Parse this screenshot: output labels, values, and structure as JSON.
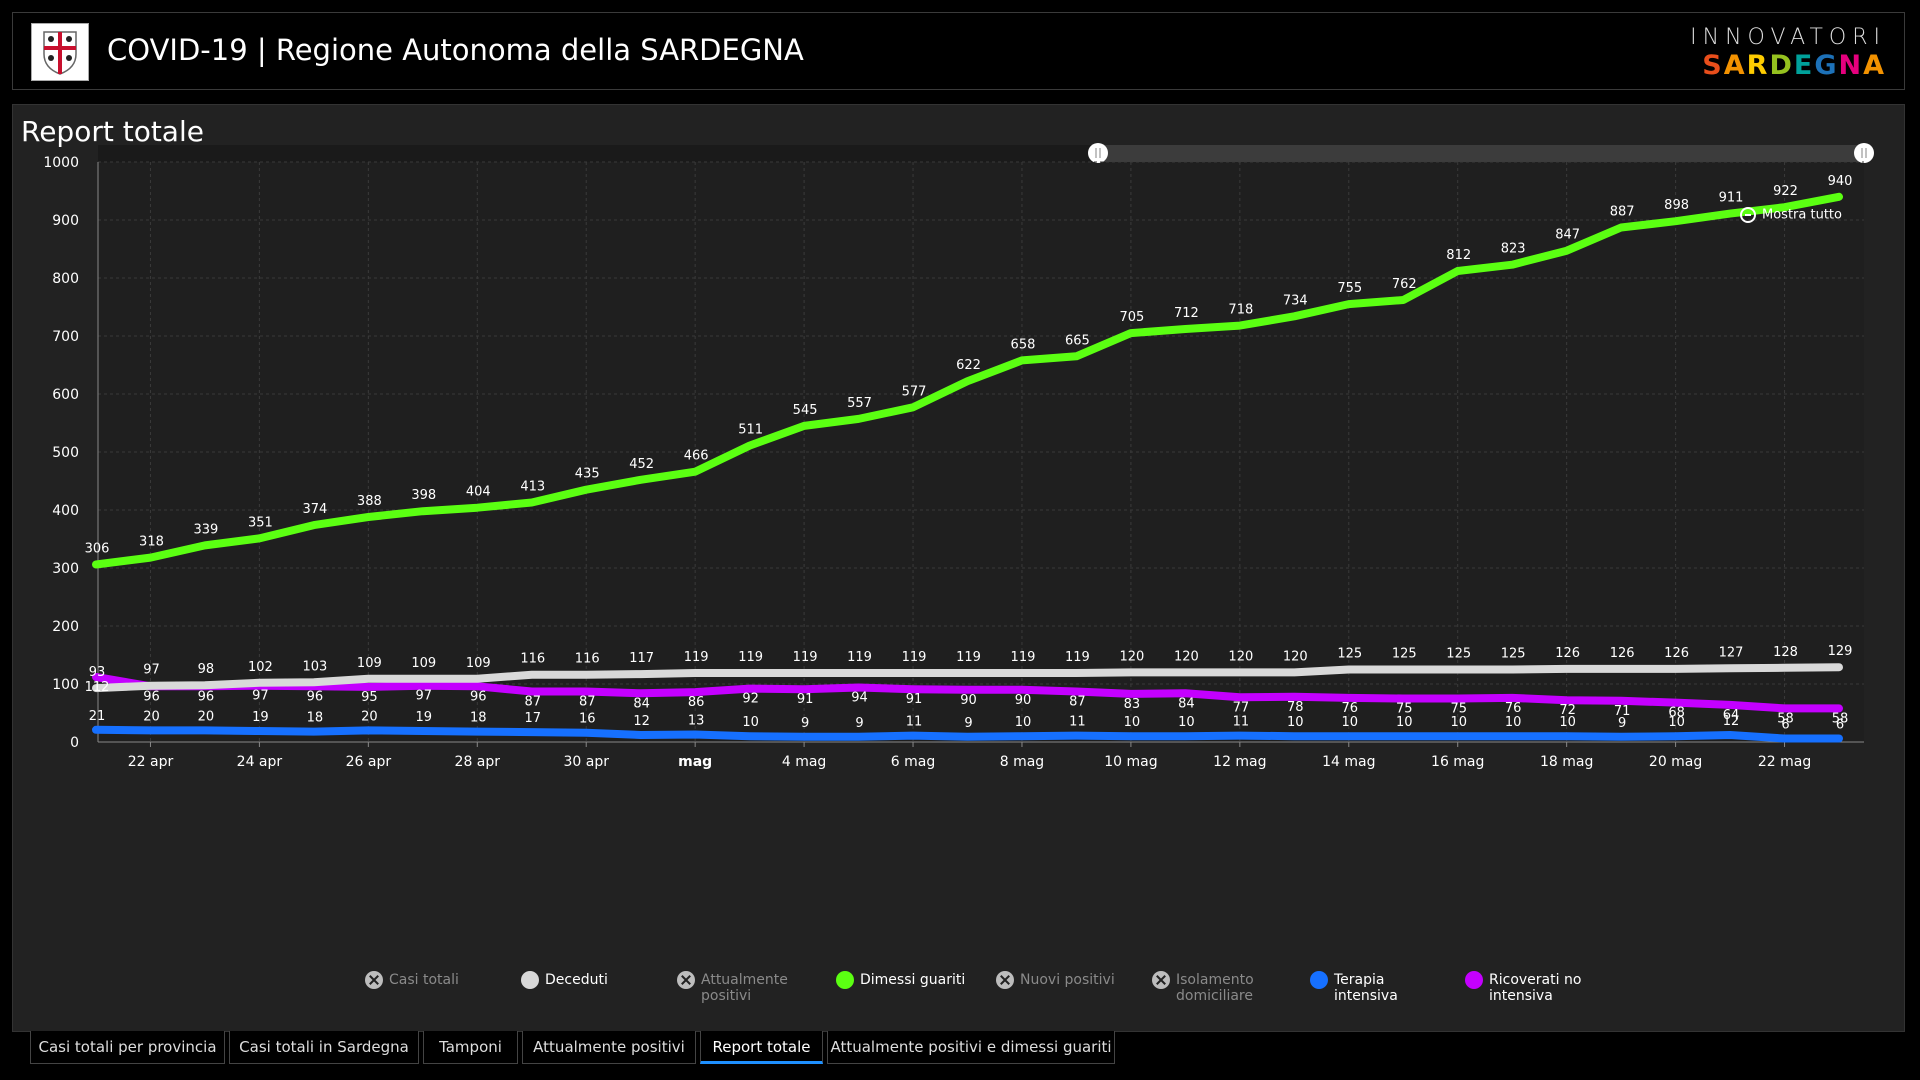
{
  "header": {
    "title": "COVID-19 | Regione Autonoma della SARDEGNA",
    "brand_top": "INNOVATORI",
    "brand_bottom": "SARDEGNA"
  },
  "panel": {
    "title": "Report totale",
    "zoom_label": "Mostra tutto"
  },
  "legend": [
    {
      "label": "Casi totali",
      "color": "#8a8a8a",
      "enabled": false
    },
    {
      "label": "Deceduti",
      "color": "#d9d9d9",
      "enabled": true
    },
    {
      "label": "Attualmente positivi",
      "color": "#8a8a8a",
      "enabled": false
    },
    {
      "label": "Dimessi guariti",
      "color": "#5bff12",
      "enabled": true
    },
    {
      "label": "Nuovi positivi",
      "color": "#8a8a8a",
      "enabled": false
    },
    {
      "label": "Isolamento domiciliare",
      "color": "#8a8a8a",
      "enabled": false
    },
    {
      "label": "Terapia intensiva",
      "color": "#1670ff",
      "enabled": true
    },
    {
      "label": "Ricoverati no intensiva",
      "color": "#c400ff",
      "enabled": true
    }
  ],
  "tabs": [
    {
      "label": "Casi totali per provincia",
      "active": false
    },
    {
      "label": "Casi totali in Sardegna",
      "active": false
    },
    {
      "label": "Tamponi",
      "active": false
    },
    {
      "label": "Attualmente positivi",
      "active": false
    },
    {
      "label": "Report totale",
      "active": true
    },
    {
      "label": "Attualmente positivi e dimessi guariti",
      "active": false
    }
  ],
  "chart_data": {
    "type": "line",
    "title": "Report totale",
    "ylim": [
      0,
      1000
    ],
    "yticks": [
      0,
      100,
      200,
      300,
      400,
      500,
      600,
      700,
      800,
      900,
      1000
    ],
    "x_tick_labels": [
      "22 apr",
      "24 apr",
      "26 apr",
      "28 apr",
      "30 apr",
      "mag",
      "4 mag",
      "6 mag",
      "8 mag",
      "10 mag",
      "12 mag",
      "14 mag",
      "16 mag",
      "18 mag",
      "20 mag",
      "22 mag"
    ],
    "x_tick_indices": [
      1,
      3,
      5,
      7,
      9,
      11,
      13,
      15,
      17,
      19,
      21,
      23,
      25,
      27,
      29,
      31
    ],
    "x": [
      "21 apr",
      "22 apr",
      "23 apr",
      "24 apr",
      "25 apr",
      "26 apr",
      "27 apr",
      "28 apr",
      "29 apr",
      "30 apr",
      "1 mag",
      "2 mag",
      "3 mag",
      "4 mag",
      "5 mag",
      "6 mag",
      "7 mag",
      "8 mag",
      "9 mag",
      "10 mag",
      "11 mag",
      "12 mag",
      "13 mag",
      "14 mag",
      "15 mag",
      "16 mag",
      "17 mag",
      "18 mag",
      "19 mag",
      "20 mag",
      "21 mag",
      "22 mag",
      "23 mag"
    ],
    "grid": true,
    "series": [
      {
        "name": "Dimessi guariti",
        "color": "#5bff12",
        "values": [
          306,
          318,
          339,
          351,
          374,
          388,
          398,
          404,
          413,
          435,
          452,
          466,
          511,
          545,
          557,
          577,
          622,
          658,
          665,
          705,
          712,
          718,
          734,
          755,
          762,
          812,
          823,
          847,
          887,
          898,
          911,
          922,
          940
        ]
      },
      {
        "name": "Deceduti",
        "color": "#d9d9d9",
        "values": [
          93,
          97,
          98,
          102,
          103,
          109,
          109,
          109,
          116,
          116,
          117,
          119,
          119,
          119,
          119,
          119,
          119,
          119,
          119,
          120,
          120,
          120,
          120,
          125,
          125,
          125,
          125,
          126,
          126,
          126,
          127,
          128,
          129
        ]
      },
      {
        "name": "Ricoverati no intensiva",
        "color": "#c400ff",
        "values": [
          112,
          96,
          96,
          97,
          96,
          95,
          97,
          96,
          87,
          87,
          84,
          86,
          92,
          91,
          94,
          91,
          90,
          90,
          87,
          83,
          84,
          77,
          78,
          76,
          75,
          75,
          76,
          72,
          71,
          68,
          64,
          58,
          58
        ]
      },
      {
        "name": "Terapia intensiva",
        "color": "#1670ff",
        "values": [
          21,
          20,
          20,
          19,
          18,
          20,
          19,
          18,
          17,
          16,
          12,
          13,
          10,
          9,
          9,
          11,
          9,
          10,
          11,
          10,
          10,
          11,
          10,
          10,
          10,
          10,
          10,
          10,
          9,
          10,
          12,
          6,
          6
        ]
      }
    ]
  }
}
